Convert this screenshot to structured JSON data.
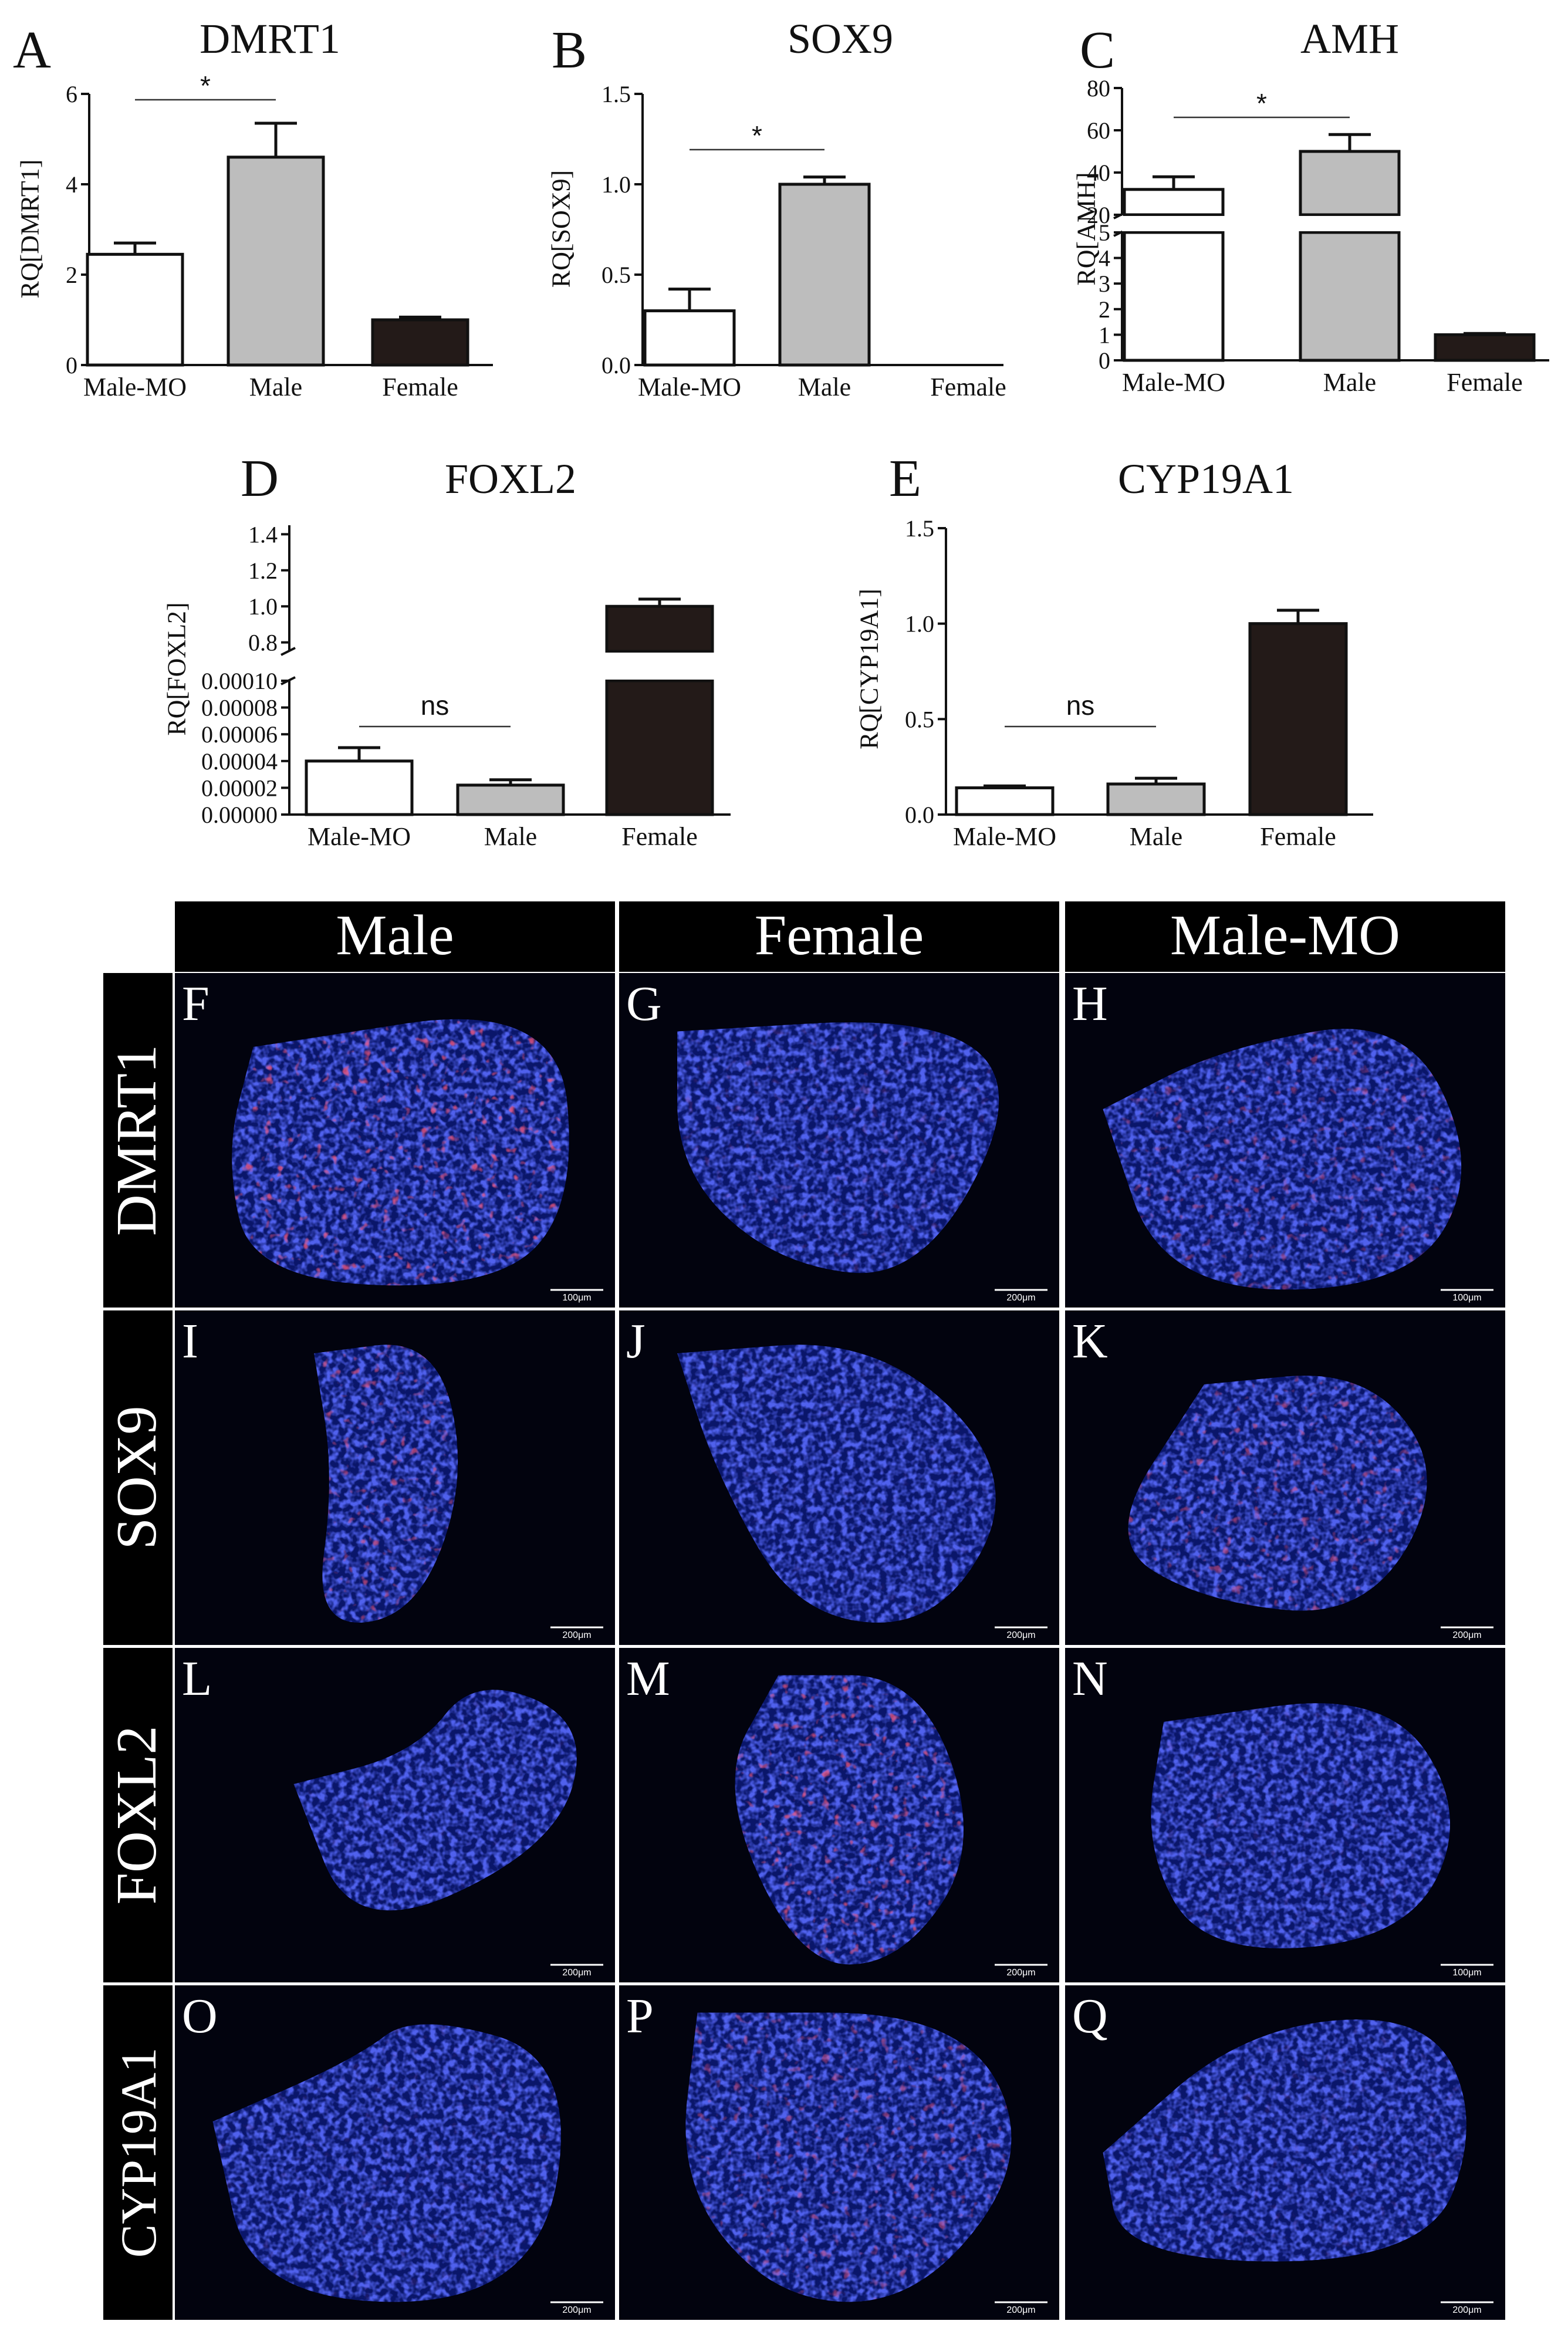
{
  "charts": [
    {
      "letter": "A",
      "title": "DMRT1",
      "ylabel": "RQ[DMRT1]",
      "categories": [
        "Male-MO",
        "Male",
        "Female"
      ],
      "values": [
        2.45,
        4.6,
        1.0
      ],
      "errors": [
        0.25,
        0.75,
        0.06
      ],
      "colors": [
        "#ffffff",
        "#bdbdbd",
        "#231a18"
      ],
      "ylim": [
        0,
        6
      ],
      "yticks": [
        "0",
        "2",
        "4",
        "6"
      ],
      "annotation": {
        "text": "*",
        "from": 0,
        "to": 1
      }
    },
    {
      "letter": "B",
      "title": "SOX9",
      "ylabel": "RQ[SOX9]",
      "categories": [
        "Male-MO",
        "Male",
        "Female"
      ],
      "values": [
        0.3,
        1.0,
        0.0
      ],
      "errors": [
        0.12,
        0.04,
        0.0
      ],
      "colors": [
        "#ffffff",
        "#bdbdbd",
        "#231a18"
      ],
      "ylim": [
        0,
        1.5
      ],
      "yticks": [
        "0.0",
        "0.5",
        "1.0",
        "1.5"
      ],
      "annotation": {
        "text": "*",
        "from": 0,
        "to": 1
      }
    },
    {
      "letter": "C",
      "title": "AMH",
      "ylabel": "RQ[AMH]",
      "categories": [
        "Male-MO",
        "Male",
        "Female"
      ],
      "values": [
        32,
        50,
        1.0
      ],
      "errors": [
        6,
        8,
        0.05
      ],
      "colors": [
        "#ffffff",
        "#bdbdbd",
        "#231a18"
      ],
      "broken_axis": {
        "lower": [
          0,
          5
        ],
        "upper": [
          20,
          80
        ]
      },
      "yticks_lower": [
        "0",
        "1",
        "2",
        "3",
        "4",
        "5"
      ],
      "yticks_upper": [
        "20",
        "40",
        "60",
        "80"
      ],
      "annotation": {
        "text": "*",
        "from": 0,
        "to": 1
      }
    },
    {
      "letter": "D",
      "title": "FOXL2",
      "ylabel": "RQ[FOXL2]",
      "categories": [
        "Male-MO",
        "Male",
        "Female"
      ],
      "values": [
        4e-05,
        2.2e-05,
        1.0
      ],
      "errors": [
        1e-05,
        4e-06,
        0.04
      ],
      "colors": [
        "#ffffff",
        "#bdbdbd",
        "#231a18"
      ],
      "broken_axis": {
        "lower": [
          0,
          0.0001
        ],
        "upper": [
          0.75,
          1.45
        ]
      },
      "yticks_lower": [
        "0.00000",
        "0.00002",
        "0.00004",
        "0.00006",
        "0.00008",
        "0.00010"
      ],
      "yticks_upper": [
        "0.8",
        "1.0",
        "1.2",
        "1.4"
      ],
      "annotation": {
        "text": "ns",
        "from": 0,
        "to": 1
      }
    },
    {
      "letter": "E",
      "title": "CYP19A1",
      "ylabel": "RQ[CYP19A1]",
      "categories": [
        "Male-MO",
        "Male",
        "Female"
      ],
      "values": [
        0.14,
        0.16,
        1.0
      ],
      "errors": [
        0.01,
        0.03,
        0.07
      ],
      "colors": [
        "#ffffff",
        "#bdbdbd",
        "#231a18"
      ],
      "ylim": [
        0,
        1.5
      ],
      "yticks": [
        "0.0",
        "0.5",
        "1.0",
        "1.5"
      ],
      "annotation": {
        "text": "ns",
        "from": 0,
        "to": 1
      }
    }
  ],
  "micrographs": {
    "columns": [
      "Male",
      "Female",
      "Male-MO"
    ],
    "rows": [
      {
        "label": "DMRT1",
        "panels": [
          {
            "letter": "F",
            "scale": "100μm",
            "red": 0.75
          },
          {
            "letter": "G",
            "scale": "200μm",
            "red": 0.15
          },
          {
            "letter": "H",
            "scale": "100μm",
            "red": 0.4
          }
        ]
      },
      {
        "label": "SOX9",
        "panels": [
          {
            "letter": "I",
            "scale": "200μm",
            "red": 0.6
          },
          {
            "letter": "J",
            "scale": "200μm",
            "red": 0.05
          },
          {
            "letter": "K",
            "scale": "200μm",
            "red": 0.5
          }
        ]
      },
      {
        "label": "FOXL2",
        "panels": [
          {
            "letter": "L",
            "scale": "200μm",
            "red": 0.05
          },
          {
            "letter": "M",
            "scale": "200μm",
            "red": 0.7
          },
          {
            "letter": "N",
            "scale": "100μm",
            "red": 0.08
          }
        ]
      },
      {
        "label": "CYP19A1",
        "panels": [
          {
            "letter": "O",
            "scale": "200μm",
            "red": 0.08
          },
          {
            "letter": "P",
            "scale": "200μm",
            "red": 0.45
          },
          {
            "letter": "Q",
            "scale": "200μm",
            "red": 0.08
          }
        ]
      }
    ]
  }
}
